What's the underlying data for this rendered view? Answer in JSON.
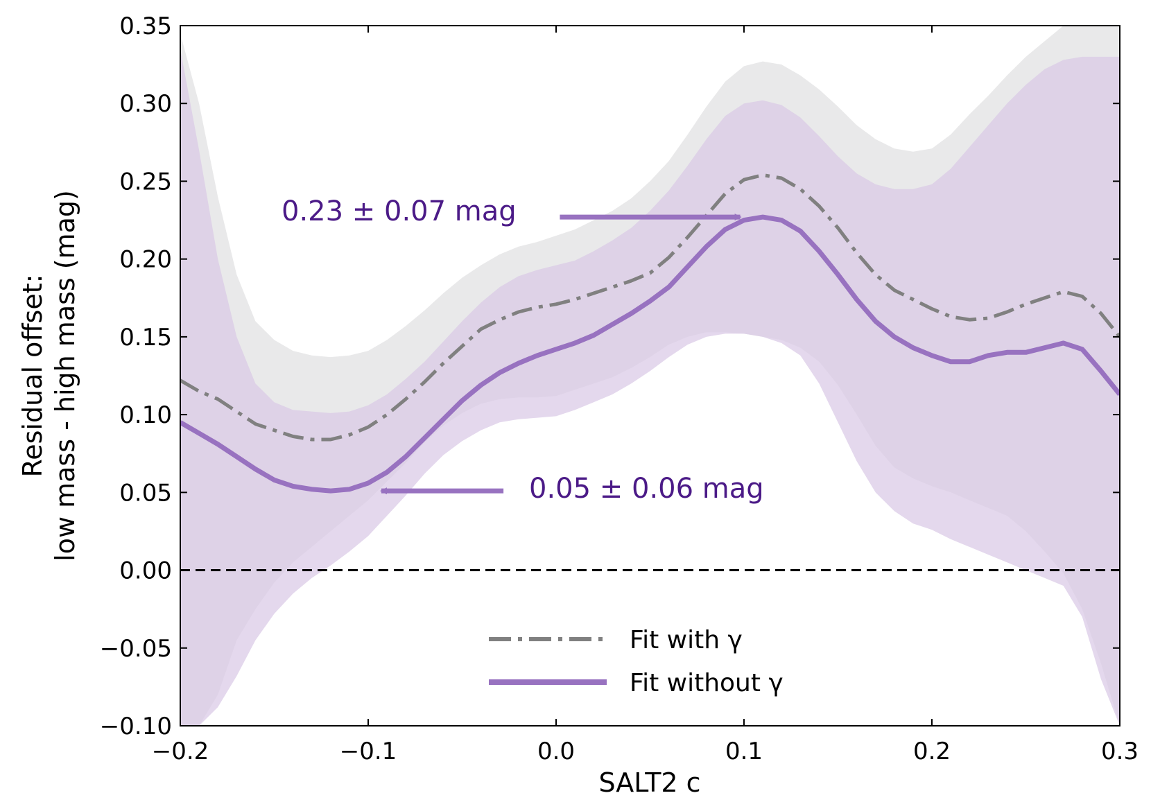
{
  "chart_data": {
    "type": "line",
    "xlabel": "SALT2 c",
    "ylabel_line1": "Residual offset:",
    "ylabel_line2": "low mass - high mass (mag)",
    "xlim": [
      -0.2,
      0.3
    ],
    "ylim": [
      -0.1,
      0.35
    ],
    "xticks": [
      -0.2,
      -0.1,
      0.0,
      0.1,
      0.2,
      0.3
    ],
    "xtick_labels": [
      "−0.2",
      "−0.1",
      "0.0",
      "0.1",
      "0.2",
      "0.3"
    ],
    "yticks": [
      -0.1,
      -0.05,
      0.0,
      0.05,
      0.1,
      0.15,
      0.2,
      0.25,
      0.3,
      0.35
    ],
    "ytick_labels": [
      "−0.10",
      "−0.05",
      "0.00",
      "0.05",
      "0.10",
      "0.15",
      "0.20",
      "0.25",
      "0.30",
      "0.35"
    ],
    "reference_line": {
      "y": 0.0,
      "style": "dashed",
      "color": "#000000"
    },
    "x": [
      -0.2,
      -0.19,
      -0.18,
      -0.17,
      -0.16,
      -0.15,
      -0.14,
      -0.13,
      -0.12,
      -0.11,
      -0.1,
      -0.09,
      -0.08,
      -0.07,
      -0.06,
      -0.05,
      -0.04,
      -0.03,
      -0.02,
      -0.01,
      0.0,
      0.01,
      0.02,
      0.03,
      0.04,
      0.05,
      0.06,
      0.07,
      0.08,
      0.09,
      0.1,
      0.11,
      0.12,
      0.13,
      0.14,
      0.15,
      0.16,
      0.17,
      0.18,
      0.19,
      0.2,
      0.21,
      0.22,
      0.23,
      0.24,
      0.25,
      0.26,
      0.27,
      0.28,
      0.29,
      0.3
    ],
    "series": [
      {
        "name": "Fit with γ",
        "style": "dashdot",
        "color": "#808080",
        "band_color": "#e9e9ea",
        "values": [
          0.122,
          0.115,
          0.11,
          0.102,
          0.094,
          0.09,
          0.086,
          0.084,
          0.084,
          0.087,
          0.092,
          0.1,
          0.11,
          0.121,
          0.133,
          0.144,
          0.155,
          0.161,
          0.166,
          0.169,
          0.171,
          0.174,
          0.178,
          0.182,
          0.186,
          0.191,
          0.201,
          0.214,
          0.228,
          0.242,
          0.251,
          0.254,
          0.252,
          0.245,
          0.234,
          0.22,
          0.204,
          0.19,
          0.18,
          0.174,
          0.168,
          0.163,
          0.161,
          0.162,
          0.166,
          0.171,
          0.175,
          0.179,
          0.176,
          0.165,
          0.15
        ],
        "upper": [
          0.345,
          0.3,
          0.24,
          0.19,
          0.16,
          0.148,
          0.141,
          0.138,
          0.137,
          0.138,
          0.141,
          0.148,
          0.157,
          0.167,
          0.178,
          0.188,
          0.196,
          0.203,
          0.208,
          0.211,
          0.215,
          0.219,
          0.225,
          0.231,
          0.239,
          0.25,
          0.263,
          0.28,
          0.298,
          0.314,
          0.324,
          0.327,
          0.325,
          0.318,
          0.309,
          0.298,
          0.286,
          0.277,
          0.271,
          0.269,
          0.271,
          0.28,
          0.293,
          0.305,
          0.318,
          0.33,
          0.34,
          0.35,
          0.35,
          0.35,
          0.35
        ],
        "lower": [
          -0.1,
          -0.1,
          -0.08,
          -0.045,
          -0.025,
          -0.008,
          0.005,
          0.015,
          0.025,
          0.035,
          0.045,
          0.057,
          0.069,
          0.082,
          0.093,
          0.101,
          0.107,
          0.11,
          0.111,
          0.111,
          0.112,
          0.116,
          0.12,
          0.124,
          0.13,
          0.137,
          0.145,
          0.15,
          0.153,
          0.153,
          0.152,
          0.15,
          0.148,
          0.143,
          0.134,
          0.119,
          0.1,
          0.08,
          0.066,
          0.059,
          0.054,
          0.05,
          0.045,
          0.04,
          0.035,
          0.025,
          0.012,
          -0.002,
          -0.025,
          -0.06,
          -0.1
        ]
      },
      {
        "name": "Fit without γ",
        "style": "solid",
        "color": "#9872c0",
        "band_color": "#d9c9e6",
        "values": [
          0.095,
          0.088,
          0.081,
          0.073,
          0.065,
          0.058,
          0.054,
          0.052,
          0.051,
          0.052,
          0.056,
          0.063,
          0.073,
          0.085,
          0.097,
          0.109,
          0.119,
          0.127,
          0.133,
          0.138,
          0.142,
          0.146,
          0.151,
          0.158,
          0.165,
          0.173,
          0.182,
          0.195,
          0.208,
          0.219,
          0.225,
          0.227,
          0.225,
          0.218,
          0.205,
          0.19,
          0.174,
          0.16,
          0.15,
          0.143,
          0.138,
          0.134,
          0.134,
          0.138,
          0.14,
          0.14,
          0.143,
          0.146,
          0.142,
          0.128,
          0.113
        ],
        "upper": [
          0.335,
          0.27,
          0.2,
          0.15,
          0.12,
          0.108,
          0.103,
          0.102,
          0.101,
          0.102,
          0.106,
          0.113,
          0.123,
          0.134,
          0.147,
          0.16,
          0.172,
          0.182,
          0.189,
          0.193,
          0.196,
          0.199,
          0.205,
          0.212,
          0.22,
          0.231,
          0.244,
          0.26,
          0.277,
          0.292,
          0.3,
          0.302,
          0.299,
          0.291,
          0.279,
          0.266,
          0.255,
          0.248,
          0.245,
          0.245,
          0.248,
          0.258,
          0.272,
          0.286,
          0.3,
          0.312,
          0.322,
          0.328,
          0.33,
          0.33,
          0.33
        ],
        "lower": [
          -0.1,
          -0.1,
          -0.088,
          -0.068,
          -0.045,
          -0.028,
          -0.015,
          -0.005,
          0.003,
          0.012,
          0.022,
          0.035,
          0.048,
          0.062,
          0.074,
          0.083,
          0.09,
          0.095,
          0.097,
          0.098,
          0.099,
          0.103,
          0.108,
          0.113,
          0.12,
          0.128,
          0.137,
          0.145,
          0.15,
          0.152,
          0.152,
          0.15,
          0.146,
          0.138,
          0.12,
          0.095,
          0.07,
          0.05,
          0.038,
          0.03,
          0.026,
          0.02,
          0.015,
          0.01,
          0.005,
          0.0,
          -0.005,
          -0.01,
          -0.03,
          -0.07,
          -0.1
        ]
      }
    ],
    "annotations": [
      {
        "text": "0.23 ± 0.07 mag",
        "arrow_to": [
          0.098,
          0.227
        ],
        "arrow_from": [
          0.002,
          0.227
        ],
        "color": "#4b1a87"
      },
      {
        "text": "0.05 ± 0.06 mag",
        "arrow_to": [
          -0.093,
          0.051
        ],
        "arrow_from": [
          -0.028,
          0.051
        ],
        "color": "#4b1a87"
      }
    ],
    "legend": {
      "position": "lower-center",
      "entries": [
        "Fit with γ",
        "Fit without γ"
      ]
    }
  }
}
